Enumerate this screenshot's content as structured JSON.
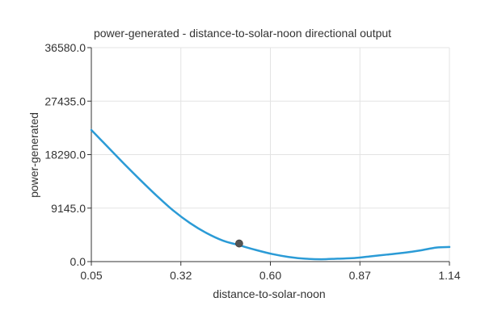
{
  "chart_data": {
    "type": "line",
    "title": "power-generated - distance-to-solar-noon directional output",
    "xlabel": "distance-to-solar-noon",
    "ylabel": "power-generated",
    "xlim": [
      0.05,
      1.14
    ],
    "ylim": [
      0,
      36580
    ],
    "x_ticks": [
      "0.05",
      "0.32",
      "0.60",
      "0.87",
      "1.14"
    ],
    "y_ticks": [
      "0.0",
      "9145.0",
      "18290.0",
      "27435.0",
      "36580.0"
    ],
    "grid": true,
    "series": [
      {
        "color": "#2b9bd6",
        "x": [
          0.05,
          0.1,
          0.15,
          0.2,
          0.25,
          0.3,
          0.35,
          0.4,
          0.45,
          0.5,
          0.55,
          0.6,
          0.65,
          0.7,
          0.75,
          0.8,
          0.85,
          0.9,
          0.95,
          1.0,
          1.05,
          1.1,
          1.14
        ],
        "y": [
          22500,
          19600,
          16700,
          13900,
          11200,
          8700,
          6600,
          4900,
          3600,
          2800,
          2000,
          1300,
          800,
          500,
          400,
          500,
          600,
          900,
          1200,
          1500,
          1900,
          2400,
          2500
        ]
      }
    ],
    "markers": [
      {
        "x": 0.5,
        "y": 3100,
        "color": "#555555"
      }
    ]
  }
}
